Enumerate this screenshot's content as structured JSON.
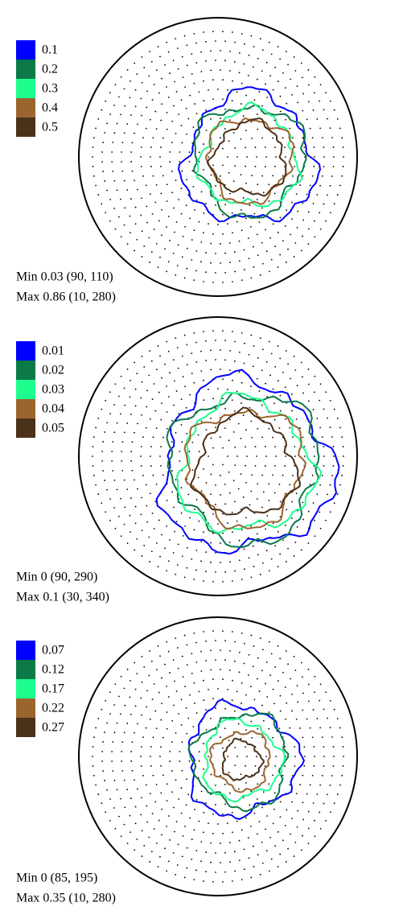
{
  "chart_data": [
    {
      "type": "contour",
      "legend": {
        "levels": [
          0.1,
          0.2,
          0.3,
          0.4,
          0.5
        ],
        "colors": [
          "#0000ff",
          "#0b7a47",
          "#1cff8e",
          "#9c652f",
          "#4b3119"
        ]
      },
      "min_label": "Min 0.03 (90, 110)",
      "max_label": "Max 0.86 (10, 280)"
    },
    {
      "type": "contour",
      "legend": {
        "levels": [
          0.01,
          0.02,
          0.03,
          0.04,
          0.05
        ],
        "colors": [
          "#0000ff",
          "#0b7a47",
          "#1cff8e",
          "#9c652f",
          "#4b3119"
        ]
      },
      "min_label": "Min 0 (90, 290)",
      "max_label": "Max 0.1 (30, 340)"
    },
    {
      "type": "contour",
      "legend": {
        "levels": [
          0.07,
          0.12,
          0.17,
          0.22,
          0.27
        ],
        "colors": [
          "#0000ff",
          "#0b7a47",
          "#1cff8e",
          "#9c652f",
          "#4b3119"
        ]
      },
      "min_label": "Min 0 (85, 195)",
      "max_label": "Max 0.35 (10, 280)"
    }
  ]
}
